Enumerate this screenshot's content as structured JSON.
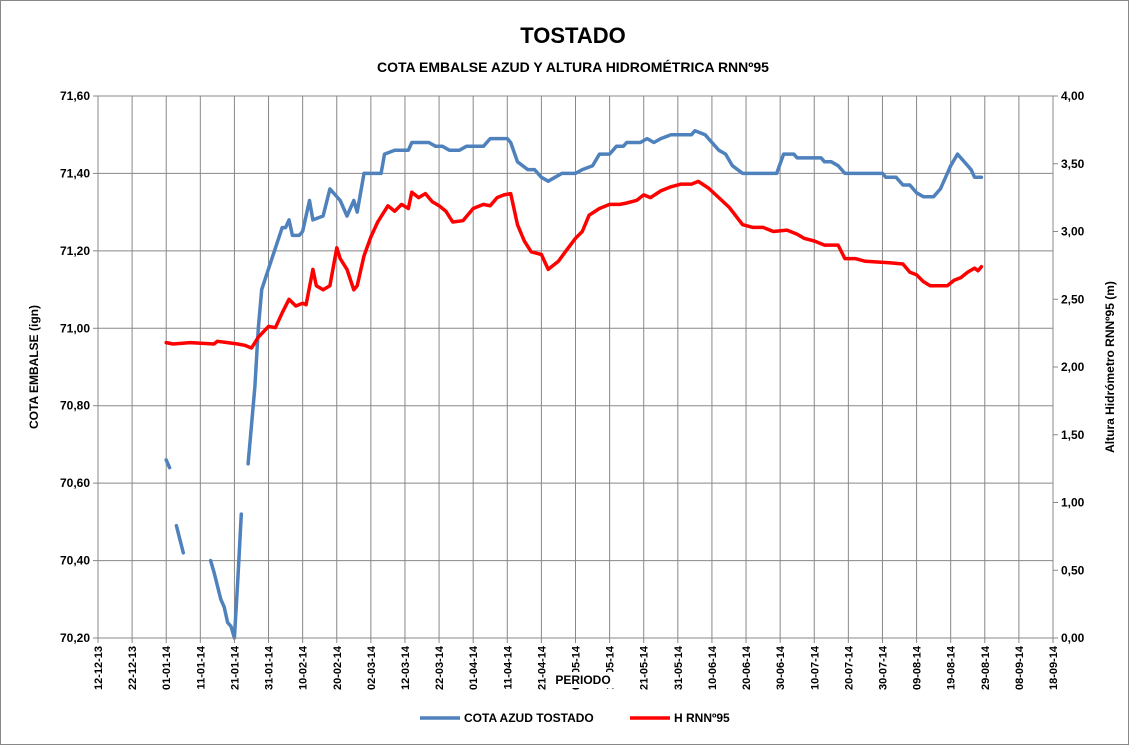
{
  "chart_data": {
    "type": "line",
    "title": "TOSTADO",
    "subtitle": "COTA EMBALSE AZUD Y ALTURA HIDROMÉTRICA RNNº95",
    "x_label": "PERIODO",
    "y_label": "COTA EMBALSE (ign)",
    "y2_label": "Altura Hidrómetro RNNº95 (m)",
    "grid": true,
    "legend": "bottom",
    "xlim": [
      "2013-12-12",
      "2014-09-18"
    ],
    "xticks": [
      {
        "value": "2013-12-12",
        "label": "12-12-13"
      },
      {
        "value": "2013-12-22",
        "label": "22-12-13"
      },
      {
        "value": "2014-01-01",
        "label": "01-01-14"
      },
      {
        "value": "2014-01-11",
        "label": "11-01-14"
      },
      {
        "value": "2014-01-21",
        "label": "21-01-14"
      },
      {
        "value": "2014-01-31",
        "label": "31-01-14"
      },
      {
        "value": "2014-02-10",
        "label": "10-02-14"
      },
      {
        "value": "2014-02-20",
        "label": "20-02-14"
      },
      {
        "value": "2014-03-02",
        "label": "02-03-14"
      },
      {
        "value": "2014-03-12",
        "label": "12-03-14"
      },
      {
        "value": "2014-03-22",
        "label": "22-03-14"
      },
      {
        "value": "2014-04-01",
        "label": "01-04-14"
      },
      {
        "value": "2014-04-11",
        "label": "11-04-14"
      },
      {
        "value": "2014-04-21",
        "label": "21-04-14"
      },
      {
        "value": "2014-05-01",
        "label": "01-05-14"
      },
      {
        "value": "2014-05-11",
        "label": "11-05-14"
      },
      {
        "value": "2014-05-21",
        "label": "21-05-14"
      },
      {
        "value": "2014-05-31",
        "label": "31-05-14"
      },
      {
        "value": "2014-06-10",
        "label": "10-06-14"
      },
      {
        "value": "2014-06-20",
        "label": "20-06-14"
      },
      {
        "value": "2014-06-30",
        "label": "30-06-14"
      },
      {
        "value": "2014-07-10",
        "label": "10-07-14"
      },
      {
        "value": "2014-07-20",
        "label": "20-07-14"
      },
      {
        "value": "2014-07-30",
        "label": "30-07-14"
      },
      {
        "value": "2014-08-09",
        "label": "09-08-14"
      },
      {
        "value": "2014-08-19",
        "label": "19-08-14"
      },
      {
        "value": "2014-08-29",
        "label": "29-08-14"
      },
      {
        "value": "2014-09-08",
        "label": "08-09-14"
      },
      {
        "value": "2014-09-18",
        "label": "18-09-14"
      }
    ],
    "ylim": [
      70.2,
      71.6
    ],
    "yticks": [
      {
        "value": 70.2,
        "label": "70,20"
      },
      {
        "value": 70.4,
        "label": "70,40"
      },
      {
        "value": 70.6,
        "label": "70,60"
      },
      {
        "value": 70.8,
        "label": "70,80"
      },
      {
        "value": 71.0,
        "label": "71,00"
      },
      {
        "value": 71.2,
        "label": "71,20"
      },
      {
        "value": 71.4,
        "label": "71,40"
      },
      {
        "value": 71.6,
        "label": "71,60"
      }
    ],
    "y2lim": [
      0,
      4
    ],
    "y2ticks": [
      {
        "value": 0,
        "label": "0,00"
      },
      {
        "value": 0.5,
        "label": "0,50"
      },
      {
        "value": 1,
        "label": "1,00"
      },
      {
        "value": 1.5,
        "label": "1,50"
      },
      {
        "value": 2,
        "label": "2,00"
      },
      {
        "value": 2.5,
        "label": "2,50"
      },
      {
        "value": 3,
        "label": "3,00"
      },
      {
        "value": 3.5,
        "label": "3,50"
      },
      {
        "value": 4,
        "label": "4,00"
      }
    ],
    "series": [
      {
        "name": "COTA AZUD TOSTADO",
        "color": "#4f81bd",
        "x": [
          "2014-01-01",
          "2014-01-02",
          "2014-01-03",
          "2014-01-04",
          "2014-01-06",
          "2014-01-10",
          "2014-01-14",
          "2014-01-15",
          "2014-01-17",
          "2014-01-18",
          "2014-01-19",
          "2014-01-20",
          "2014-01-21",
          "2014-01-22",
          "2014-01-23",
          "2014-01-24",
          "2014-01-25",
          "2014-01-26",
          "2014-01-27",
          "2014-01-28",
          "2014-01-29",
          "2014-02-01",
          "2014-02-04",
          "2014-02-05",
          "2014-02-06",
          "2014-02-07",
          "2014-02-09",
          "2014-02-10",
          "2014-02-12",
          "2014-02-13",
          "2014-02-16",
          "2014-02-18",
          "2014-02-21",
          "2014-02-23",
          "2014-02-25",
          "2014-02-26",
          "2014-02-28",
          "2014-03-05",
          "2014-03-06",
          "2014-03-09",
          "2014-03-13",
          "2014-03-14",
          "2014-03-19",
          "2014-03-21",
          "2014-03-23",
          "2014-03-25",
          "2014-03-28",
          "2014-03-30",
          "2014-04-04",
          "2014-04-06",
          "2014-04-11",
          "2014-04-12",
          "2014-04-14",
          "2014-04-17",
          "2014-04-19",
          "2014-04-21",
          "2014-04-23",
          "2014-04-25",
          "2014-04-27",
          "2014-05-01",
          "2014-05-03",
          "2014-05-06",
          "2014-05-08",
          "2014-05-11",
          "2014-05-13",
          "2014-05-15",
          "2014-05-16",
          "2014-05-20",
          "2014-05-22",
          "2014-05-24",
          "2014-05-26",
          "2014-05-29",
          "2014-06-04",
          "2014-06-05",
          "2014-06-08",
          "2014-06-09",
          "2014-06-12",
          "2014-06-14",
          "2014-06-16",
          "2014-06-19",
          "2014-06-29",
          "2014-07-01",
          "2014-07-04",
          "2014-07-05",
          "2014-07-12",
          "2014-07-13",
          "2014-07-15",
          "2014-07-17",
          "2014-07-19",
          "2014-07-30",
          "2014-07-31",
          "2014-08-03",
          "2014-08-05",
          "2014-08-07",
          "2014-08-09",
          "2014-08-11",
          "2014-08-14",
          "2014-08-16",
          "2014-08-18",
          "2014-08-19",
          "2014-08-21",
          "2014-08-23",
          "2014-08-25",
          "2014-08-26",
          "2014-08-28"
        ],
        "values": [
          70.66,
          70.64,
          null,
          70.49,
          70.42,
          null,
          70.4,
          70.37,
          70.3,
          70.28,
          70.24,
          70.23,
          70.2,
          70.35,
          70.52,
          null,
          70.65,
          70.75,
          70.85,
          71.0,
          71.1,
          71.18,
          71.26,
          71.26,
          71.28,
          71.24,
          71.24,
          71.25,
          71.33,
          71.28,
          71.29,
          71.36,
          71.33,
          71.29,
          71.33,
          71.3,
          71.4,
          71.4,
          71.45,
          71.46,
          71.46,
          71.48,
          71.48,
          71.47,
          71.47,
          71.46,
          71.46,
          71.47,
          71.47,
          71.49,
          71.49,
          71.48,
          71.43,
          71.41,
          71.41,
          71.39,
          71.38,
          71.39,
          71.4,
          71.4,
          71.41,
          71.42,
          71.45,
          71.45,
          71.47,
          71.47,
          71.48,
          71.48,
          71.49,
          71.48,
          71.49,
          71.5,
          71.5,
          71.51,
          71.5,
          71.49,
          71.46,
          71.45,
          71.42,
          71.4,
          71.4,
          71.45,
          71.45,
          71.44,
          71.44,
          71.43,
          71.43,
          71.42,
          71.4,
          71.4,
          71.39,
          71.39,
          71.37,
          71.37,
          71.35,
          71.34,
          71.34,
          71.36,
          71.4,
          71.42,
          71.45,
          71.43,
          71.41,
          71.39,
          71.39
        ]
      },
      {
        "name": "H RNNº95",
        "color": "#ff0000",
        "axis": "y2",
        "x": [
          "2014-01-01",
          "2014-01-03",
          "2014-01-08",
          "2014-01-15",
          "2014-01-16",
          "2014-01-19",
          "2014-01-22",
          "2014-01-24",
          "2014-01-26",
          "2014-01-28",
          "2014-01-31",
          "2014-02-02",
          "2014-02-04",
          "2014-02-06",
          "2014-02-08",
          "2014-02-10",
          "2014-02-11",
          "2014-02-13",
          "2014-02-14",
          "2014-02-16",
          "2014-02-18",
          "2014-02-20",
          "2014-02-21",
          "2014-02-23",
          "2014-02-25",
          "2014-02-26",
          "2014-02-28",
          "2014-03-02",
          "2014-03-04",
          "2014-03-07",
          "2014-03-09",
          "2014-03-11",
          "2014-03-13",
          "2014-03-14",
          "2014-03-16",
          "2014-03-18",
          "2014-03-20",
          "2014-03-22",
          "2014-03-24",
          "2014-03-26",
          "2014-03-29",
          "2014-04-01",
          "2014-04-04",
          "2014-04-06",
          "2014-04-08",
          "2014-04-10",
          "2014-04-12",
          "2014-04-14",
          "2014-04-16",
          "2014-04-18",
          "2014-04-21",
          "2014-04-23",
          "2014-04-26",
          "2014-04-28",
          "2014-05-01",
          "2014-05-03",
          "2014-05-05",
          "2014-05-08",
          "2014-05-11",
          "2014-05-14",
          "2014-05-16",
          "2014-05-19",
          "2014-05-21",
          "2014-05-23",
          "2014-05-26",
          "2014-05-29",
          "2014-06-01",
          "2014-06-04",
          "2014-06-06",
          "2014-06-09",
          "2014-06-12",
          "2014-06-15",
          "2014-06-19",
          "2014-06-22",
          "2014-06-25",
          "2014-06-28",
          "2014-07-02",
          "2014-07-05",
          "2014-07-07",
          "2014-07-10",
          "2014-07-13",
          "2014-07-17",
          "2014-07-19",
          "2014-07-22",
          "2014-07-25",
          "2014-08-01",
          "2014-08-05",
          "2014-08-07",
          "2014-08-09",
          "2014-08-11",
          "2014-08-13",
          "2014-08-18",
          "2014-08-20",
          "2014-08-22",
          "2014-08-24",
          "2014-08-26",
          "2014-08-27",
          "2014-08-28"
        ],
        "values": [
          2.18,
          2.17,
          2.18,
          2.17,
          2.19,
          2.18,
          2.17,
          2.16,
          2.14,
          2.22,
          2.3,
          2.29,
          2.4,
          2.5,
          2.45,
          2.47,
          2.46,
          2.72,
          2.6,
          2.57,
          2.6,
          2.88,
          2.8,
          2.72,
          2.57,
          2.6,
          2.82,
          2.96,
          3.07,
          3.19,
          3.15,
          3.2,
          3.17,
          3.29,
          3.25,
          3.28,
          3.22,
          3.19,
          3.15,
          3.07,
          3.08,
          3.17,
          3.2,
          3.19,
          3.25,
          3.27,
          3.28,
          3.05,
          2.93,
          2.85,
          2.83,
          2.72,
          2.78,
          2.85,
          2.95,
          3.0,
          3.12,
          3.17,
          3.2,
          3.2,
          3.21,
          3.23,
          3.27,
          3.25,
          3.3,
          3.33,
          3.35,
          3.35,
          3.37,
          3.32,
          3.25,
          3.18,
          3.05,
          3.03,
          3.03,
          3.0,
          3.01,
          2.98,
          2.95,
          2.93,
          2.9,
          2.9,
          2.8,
          2.8,
          2.78,
          2.77,
          2.76,
          2.7,
          2.68,
          2.63,
          2.6,
          2.6,
          2.64,
          2.66,
          2.7,
          2.73,
          2.71,
          2.74
        ]
      }
    ]
  }
}
